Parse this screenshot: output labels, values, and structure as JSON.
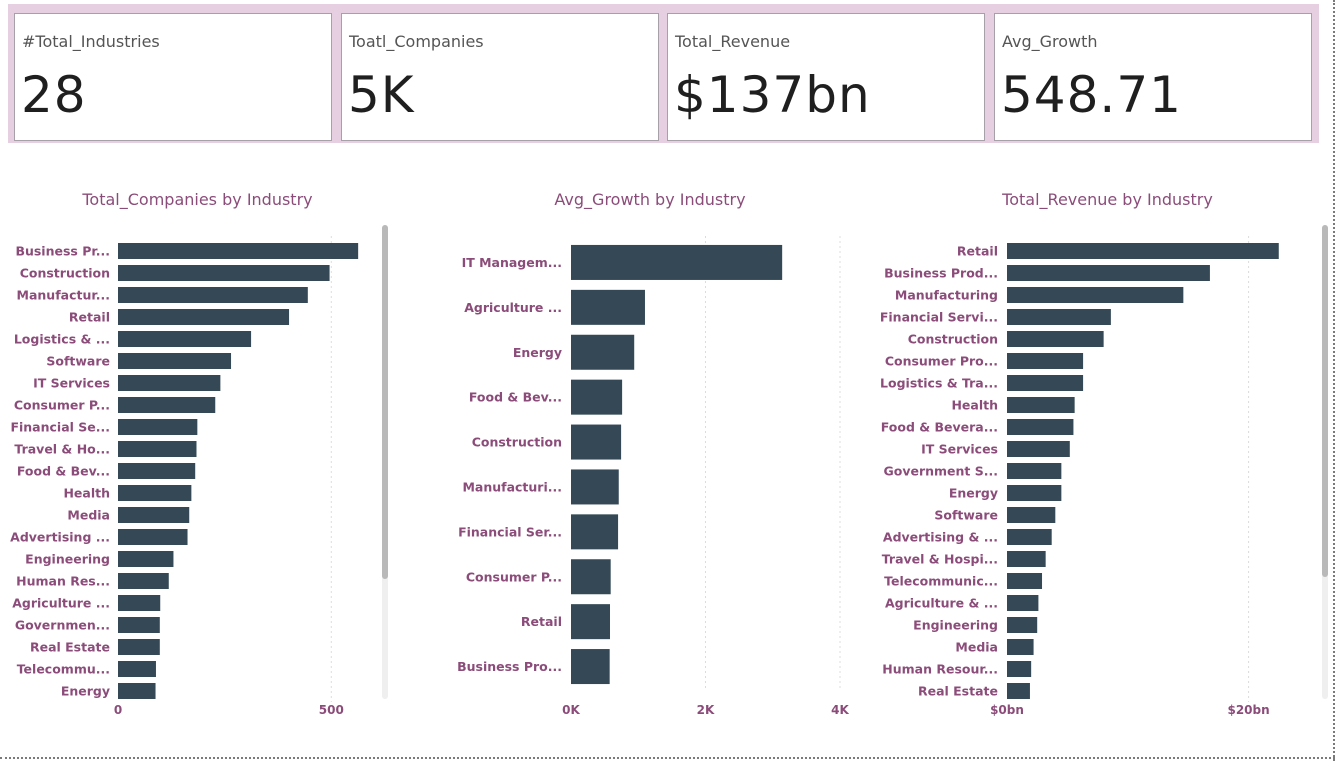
{
  "kpis": [
    {
      "label": "#Total_Industries",
      "value": "28"
    },
    {
      "label": "Toatl_Companies",
      "value": "5K"
    },
    {
      "label": "Total_Revenue",
      "value": "$137bn"
    },
    {
      "label": "Avg_Growth",
      "value": "548.71"
    }
  ],
  "colors": {
    "bar": "#344955",
    "title": "#8b4c7a",
    "kpi_band": "#e5cfe0"
  },
  "chart_data": [
    {
      "type": "bar",
      "orientation": "horizontal",
      "title": "Total_Companies by Industry",
      "categories": [
        "Business Pr...",
        "Construction",
        "Manufactur...",
        "Retail",
        "Logistics & ...",
        "Software",
        "IT Services",
        "Consumer P...",
        "Financial Se...",
        "Travel & Ho...",
        "Food & Bev...",
        "Health",
        "Media",
        "Advertising ...",
        "Engineering",
        "Human Res...",
        "Agriculture ...",
        "Governmen...",
        "Real Estate",
        "Telecommu...",
        "Energy"
      ],
      "values": [
        563,
        496,
        445,
        401,
        312,
        265,
        240,
        228,
        186,
        184,
        181,
        172,
        167,
        163,
        130,
        119,
        99,
        98,
        98,
        89,
        88
      ],
      "xticks": [
        "0",
        "500"
      ],
      "xtick_values": [
        0,
        500
      ],
      "xlim": [
        0,
        640
      ],
      "grid": true
    },
    {
      "type": "bar",
      "orientation": "horizontal",
      "title": "Avg_Growth by Industry",
      "categories": [
        "IT Managem...",
        "Agriculture ...",
        "Energy",
        "Food & Bev...",
        "Construction",
        "Manufacturi...",
        "Financial Ser...",
        "Consumer P...",
        "Retail",
        "Business Pro..."
      ],
      "values": [
        3140,
        1100,
        940,
        760,
        745,
        710,
        700,
        590,
        580,
        575
      ],
      "xticks": [
        "0K",
        "2K",
        "4K"
      ],
      "xtick_values": [
        0,
        2000,
        4000
      ],
      "xlim": [
        0,
        4000
      ],
      "grid": true
    },
    {
      "type": "bar",
      "orientation": "horizontal",
      "title": "Total_Revenue by Industry",
      "categories": [
        "Retail",
        "Business Prod...",
        "Manufacturing",
        "Financial Servi...",
        "Construction",
        "Consumer Pro...",
        "Logistics & Tra...",
        "Health",
        "Food & Bevera...",
        "IT Services",
        "Government S...",
        "Energy",
        "Software",
        "Advertising & ...",
        "Travel & Hospi...",
        "Telecommunic...",
        "Agriculture & ...",
        "Engineering",
        "Media",
        "Human Resour...",
        "Real Estate"
      ],
      "values": [
        22.5,
        16.8,
        14.6,
        8.6,
        8.0,
        6.3,
        6.3,
        5.6,
        5.5,
        5.2,
        4.5,
        4.5,
        4.0,
        3.7,
        3.2,
        2.9,
        2.6,
        2.5,
        2.2,
        2.0,
        1.9
      ],
      "unit": "bn",
      "xticks": [
        "$0bn",
        "$20bn"
      ],
      "xtick_values": [
        0,
        20
      ],
      "xlim": [
        0,
        25.5
      ],
      "grid": true
    }
  ]
}
